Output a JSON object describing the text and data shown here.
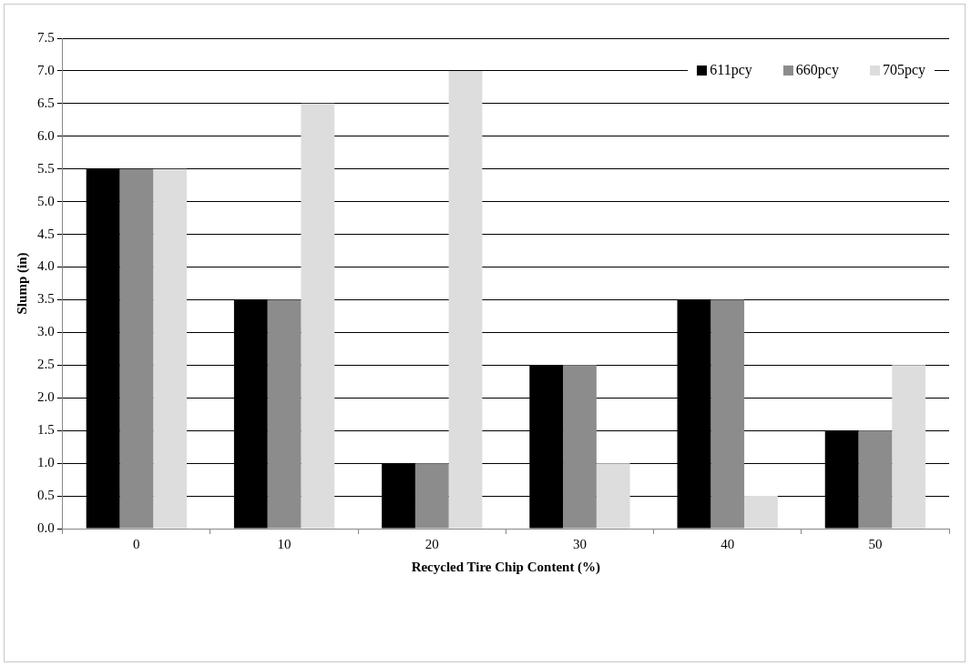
{
  "chart_data": {
    "type": "bar",
    "xlabel": "Recycled Tire Chip Content (%)",
    "ylabel": "Slump (in)",
    "categories": [
      "0",
      "10",
      "20",
      "30",
      "40",
      "50"
    ],
    "series": [
      {
        "name": "611pcy",
        "color": "#000000",
        "values": [
          5.5,
          3.5,
          1.0,
          2.5,
          3.5,
          1.5
        ]
      },
      {
        "name": "660pcy",
        "color": "#8c8c8c",
        "values": [
          5.5,
          3.5,
          1.0,
          2.5,
          3.5,
          1.5
        ]
      },
      {
        "name": "705pcy",
        "color": "#dddddd",
        "values": [
          5.5,
          6.5,
          7.0,
          1.0,
          0.5,
          2.5
        ]
      }
    ],
    "ylim": [
      0,
      7.5
    ],
    "yticks": [
      {
        "value": 0,
        "label": "0.0"
      },
      {
        "value": 0.5,
        "label": "0.5"
      },
      {
        "value": 1,
        "label": "1.0"
      },
      {
        "value": 1.5,
        "label": "1.5"
      },
      {
        "value": 2,
        "label": "2.0"
      },
      {
        "value": 2.5,
        "label": "2.5"
      },
      {
        "value": 3,
        "label": "3.0"
      },
      {
        "value": 3.5,
        "label": "3.5"
      },
      {
        "value": 4,
        "label": "4.0"
      },
      {
        "value": 4.5,
        "label": "4.5"
      },
      {
        "value": 5,
        "label": "5.0"
      },
      {
        "value": 5.5,
        "label": "5.5"
      },
      {
        "value": 6,
        "label": "6.0"
      },
      {
        "value": 6.5,
        "label": "6.5"
      },
      {
        "value": 7,
        "label": "7.0"
      },
      {
        "value": 7.5,
        "label": "7.5"
      }
    ],
    "grid": "y",
    "legend": "top right"
  }
}
